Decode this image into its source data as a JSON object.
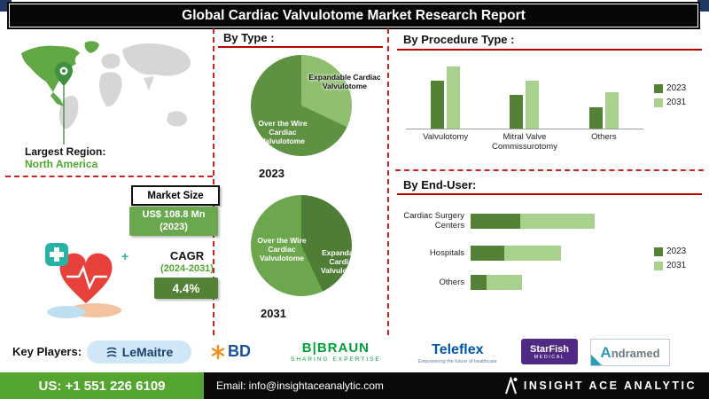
{
  "header": {
    "title": "Global Cardiac Valvulotome Market Research Report"
  },
  "map": {
    "region_label": "Largest Region:",
    "region_value": "North America"
  },
  "market": {
    "size_label": "Market Size",
    "size_value": "US$ 108.8 Mn",
    "size_year": "(2023)",
    "cagr_label": "CAGR",
    "cagr_period": "(2024-2031)",
    "cagr_value": "4.4%"
  },
  "sections": {
    "by_type": "By Type :",
    "by_procedure": "By Procedure Type :",
    "by_enduser": "By End-User:"
  },
  "chart_data": [
    {
      "type": "pie",
      "title": "By Type :",
      "year": "2023",
      "labels": [
        "Over the Wire Cardiac Valvulotome",
        "Expandable Cardiac Valvulotome"
      ],
      "values": [
        68,
        32
      ],
      "colors": [
        "#5e9141",
        "#8fbf6e"
      ],
      "legend_position": "none"
    },
    {
      "type": "pie",
      "title": "By Type :",
      "year": "2031",
      "labels": [
        "Over the Wire Cardiac Valvulotome",
        "Expandable Cardiac Valvulotome"
      ],
      "values": [
        57,
        43
      ],
      "colors": [
        "#6ca64d",
        "#4e7d35"
      ],
      "legend_position": "none"
    },
    {
      "type": "bar",
      "title": "By Procedure Type :",
      "categories": [
        "Valvulotomy",
        "Mitral Valve Commissurotomy",
        "Others"
      ],
      "ylim": [
        0,
        70
      ],
      "grid": false,
      "legend_position": "right",
      "series": [
        {
          "name": "2023",
          "color": "#538135",
          "values": [
            50,
            35,
            22
          ]
        },
        {
          "name": "2031",
          "color": "#a9d18e",
          "values": [
            65,
            50,
            38
          ]
        }
      ]
    },
    {
      "type": "bar-horizontal-stacked",
      "title": "By End-User:",
      "categories": [
        "Cardiac Surgery Centers",
        "Hospitals",
        "Others"
      ],
      "grid": false,
      "legend_position": "right",
      "series": [
        {
          "name": "2023",
          "color": "#538135",
          "values": [
            28,
            19,
            9
          ]
        },
        {
          "name": "2031",
          "color": "#a9d18e",
          "values": [
            42,
            32,
            20
          ]
        }
      ]
    }
  ],
  "key_players": {
    "label": "Key Players:",
    "logos": [
      {
        "name": "LeMaitre"
      },
      {
        "name": "BD"
      },
      {
        "name": "B|BRAUN",
        "tagline": "SHARING EXPERTISE"
      },
      {
        "name": "Teleflex",
        "tagline": "Empowering the future of healthcare"
      },
      {
        "name": "StarFish",
        "tagline": "MEDICAL"
      },
      {
        "name": "Andramed"
      }
    ]
  },
  "footer": {
    "phone": "US: +1 551 226 6109",
    "email": "Email: info@insightaceanalytic.com",
    "brand": "INSIGHT ACE ANALYTIC"
  },
  "colors": {
    "accent_red": "#c00000",
    "green_dark": "#538135",
    "green_light": "#a9d18e",
    "region_green": "#4ea72e",
    "footer_green": "#55a630"
  }
}
